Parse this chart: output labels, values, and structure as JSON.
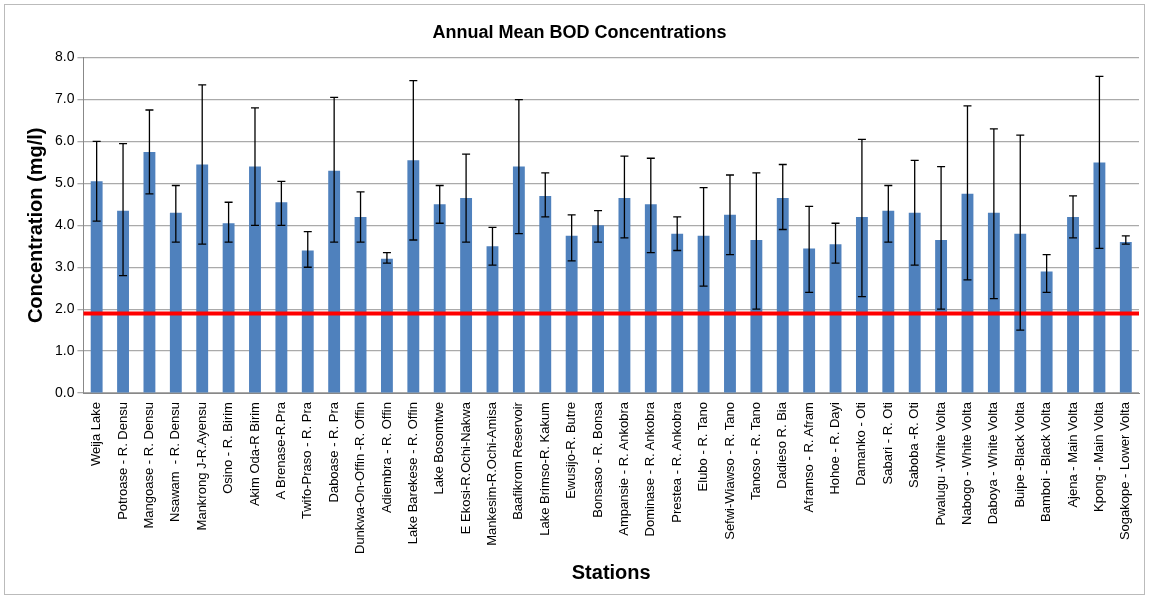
{
  "chart_data": {
    "type": "bar",
    "title": "Annual Mean BOD Concentrations",
    "xlabel": "Stations",
    "ylabel": "Concentration (mg/l)",
    "categories": [
      "Weija Lake",
      "Potroase - R. Densu",
      "Mangoase - R. Densu",
      "Nsawam  - R. Densu",
      "Mankrong J-R.Ayensu",
      "Osino - R. Birim",
      "Akim Oda-R Birim",
      "A Brenase-R.Pra",
      "Twifo-Praso - R. Pra",
      "Daboase - R. Pra",
      "Dunkwa-On-Offin -R. Offin",
      "Adiembra - R. Offin",
      "Lake Barekese - R. Offin",
      "Lake Bosomtwe",
      "E Ekosi-R.Ochi-Nakwa",
      "Mankesim-R.Ochi-Amisa",
      "Baafikrom Reservoir",
      "Lake Brimso-R. Kakum",
      "Ewusijo-R. Butre",
      "Bonsaso - R. Bonsa",
      "Ampansie - R. Ankobra",
      "Dominase - R. Ankobra",
      "Prestea - R. Ankobra",
      "Elubo - R. Tano",
      "Sefwi-Wiawso - R. Tano",
      "Tanoso - R. Tano",
      "Dadieso R. Bia",
      "Aframso - R. Afram",
      "Hohoe - R. Dayi",
      "Damanko - Oti",
      "Sabari - R. Oti",
      "Saboba -R. Oti",
      "Pwalugu -White Volta",
      "Nabogo - White Volta",
      "Daboya - White Volta",
      "Buipe -Black Volta",
      "Bamboi - Black Volta",
      "Ajena - Main Volta",
      "Kpong - Main Volta",
      "Sogakope - Lower Volta"
    ],
    "values": [
      5.05,
      4.35,
      5.75,
      4.3,
      5.45,
      4.05,
      5.4,
      4.55,
      3.4,
      5.3,
      4.2,
      3.2,
      5.55,
      4.5,
      4.65,
      3.5,
      5.4,
      4.7,
      3.75,
      4.0,
      4.65,
      4.5,
      3.8,
      3.75,
      4.25,
      3.65,
      4.65,
      3.45,
      3.55,
      4.2,
      4.35,
      4.3,
      3.65,
      4.75,
      4.3,
      3.8,
      2.9,
      4.2,
      5.5,
      3.6
    ],
    "errors": [
      [
        4.1,
        6.0
      ],
      [
        2.8,
        5.95
      ],
      [
        4.75,
        6.75
      ],
      [
        3.6,
        4.95
      ],
      [
        3.55,
        7.35
      ],
      [
        3.6,
        4.55
      ],
      [
        4.0,
        6.8
      ],
      [
        4.0,
        5.05
      ],
      [
        3.0,
        3.85
      ],
      [
        3.6,
        7.05
      ],
      [
        3.6,
        4.8
      ],
      [
        3.1,
        3.35
      ],
      [
        3.65,
        7.45
      ],
      [
        4.05,
        4.95
      ],
      [
        3.6,
        5.7
      ],
      [
        3.05,
        3.95
      ],
      [
        3.8,
        7.0
      ],
      [
        4.2,
        5.25
      ],
      [
        3.15,
        4.25
      ],
      [
        3.6,
        4.35
      ],
      [
        3.7,
        5.65
      ],
      [
        3.35,
        5.6
      ],
      [
        3.4,
        4.2
      ],
      [
        2.55,
        4.9
      ],
      [
        3.3,
        5.2
      ],
      [
        2.0,
        5.25
      ],
      [
        3.9,
        5.45
      ],
      [
        2.4,
        4.45
      ],
      [
        3.1,
        4.05
      ],
      [
        2.3,
        6.05
      ],
      [
        3.6,
        4.95
      ],
      [
        3.05,
        5.55
      ],
      [
        2.0,
        5.4
      ],
      [
        2.7,
        6.85
      ],
      [
        2.25,
        6.3
      ],
      [
        1.5,
        6.15
      ],
      [
        2.4,
        3.3
      ],
      [
        3.7,
        4.7
      ],
      [
        3.45,
        7.55
      ],
      [
        3.55,
        3.75
      ]
    ],
    "color": "#4f81bd",
    "ylim": [
      0,
      8
    ],
    "yticks": [
      {
        "value": 0,
        "label": "0.0"
      },
      {
        "value": 1,
        "label": "1.0"
      },
      {
        "value": 2,
        "label": "2.0"
      },
      {
        "value": 3,
        "label": "3.0"
      },
      {
        "value": 4,
        "label": "4.0"
      },
      {
        "value": 5,
        "label": "5.0"
      },
      {
        "value": 6,
        "label": "6.0"
      },
      {
        "value": 7,
        "label": "7.0"
      },
      {
        "value": 8,
        "label": "8.0"
      }
    ],
    "ref_lines": [
      {
        "axis": "y",
        "value": 1.9,
        "color": "#ff0000"
      }
    ],
    "grid": "y"
  }
}
